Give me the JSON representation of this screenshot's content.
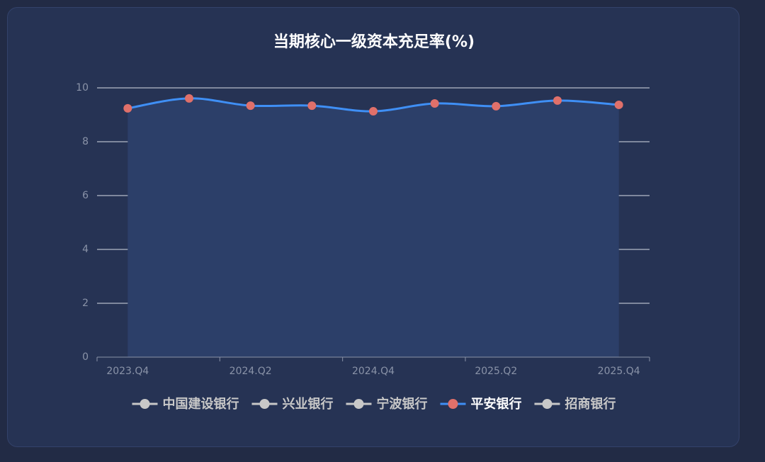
{
  "chart_data": {
    "type": "line",
    "title": "当期核心一级资本充足率(%)",
    "categories": [
      "2023.Q4",
      null,
      "2024.Q2",
      null,
      "2024.Q4",
      null,
      "2025.Q2",
      null,
      "2025.Q4"
    ],
    "series": [
      {
        "name": "中国建设银行",
        "color": "#c8c8c8",
        "selected": false,
        "values": [
          null,
          null,
          null,
          null,
          null,
          null,
          null,
          null,
          null
        ]
      },
      {
        "name": "兴业银行",
        "color": "#c8c8c8",
        "selected": false,
        "values": [
          null,
          null,
          null,
          null,
          null,
          null,
          null,
          null,
          null
        ]
      },
      {
        "name": "宁波银行",
        "color": "#c8c8c8",
        "selected": false,
        "values": [
          null,
          null,
          null,
          null,
          null,
          null,
          null,
          null,
          null
        ]
      },
      {
        "name": "平安银行",
        "color": "#3f8ff5",
        "marker_color": "#e0706a",
        "area_color": "#2c3f69",
        "selected": true,
        "values": [
          9.24,
          9.61,
          9.34,
          9.34,
          9.13,
          9.42,
          9.32,
          9.53,
          9.37
        ]
      },
      {
        "name": "招商银行",
        "color": "#c8c8c8",
        "selected": false,
        "values": [
          null,
          null,
          null,
          null,
          null,
          null,
          null,
          null,
          null
        ]
      }
    ],
    "ylim": [
      0,
      10
    ],
    "yticks": [
      0,
      2,
      4,
      6,
      8,
      10
    ],
    "grid": true,
    "legend": "bottom"
  }
}
